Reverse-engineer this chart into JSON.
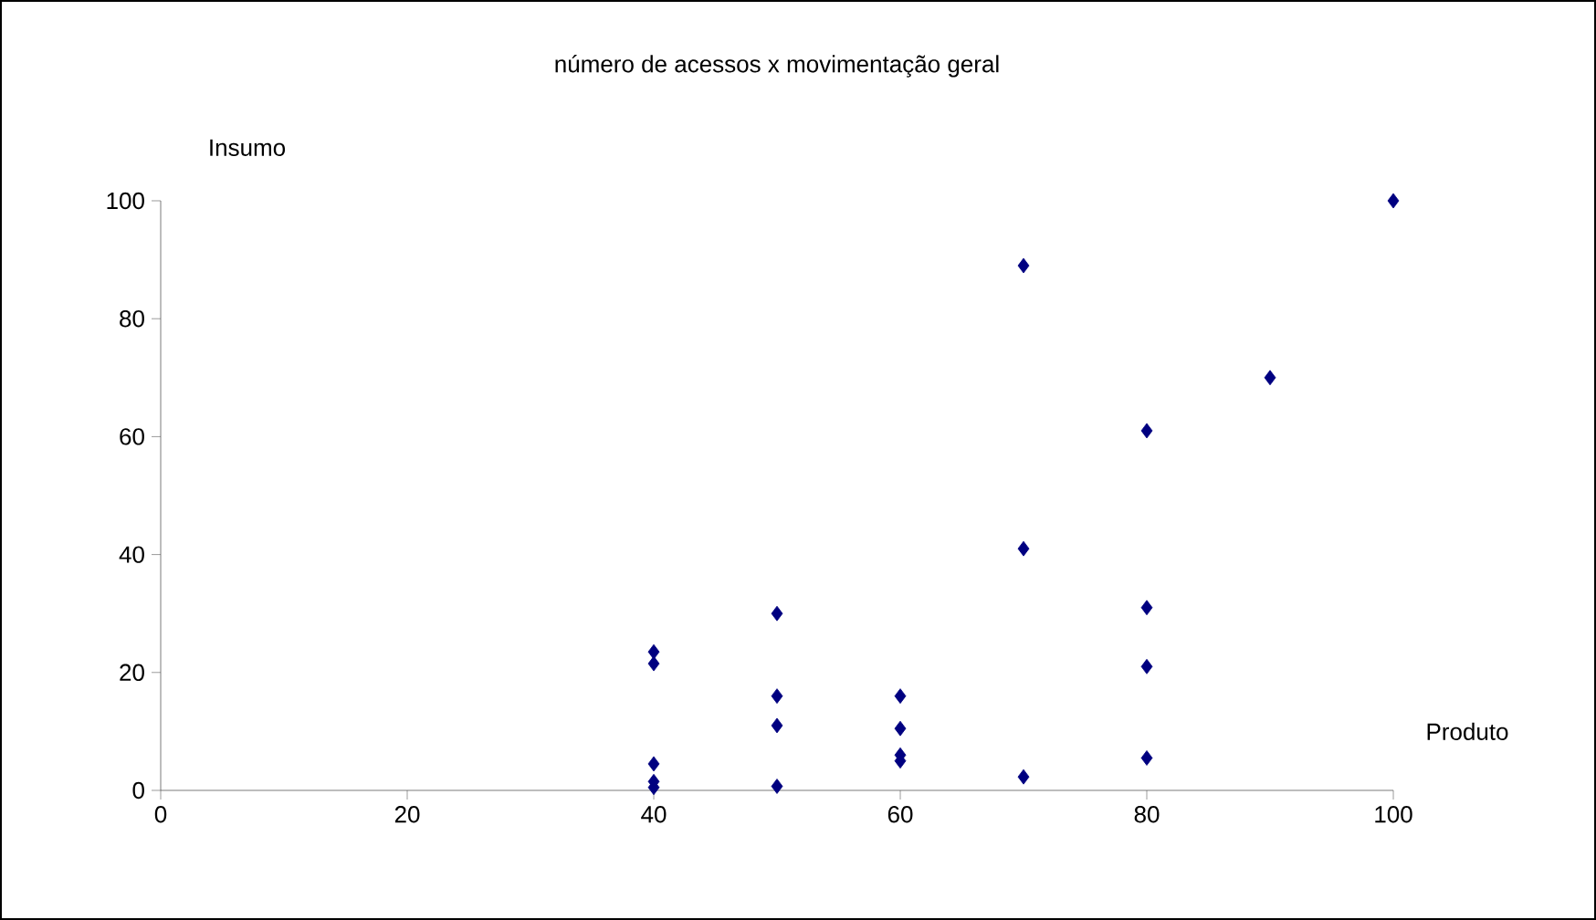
{
  "chart_data": {
    "type": "scatter",
    "title": "número de acessos x movimentação geral",
    "xlabel": "Produto",
    "ylabel": "Insumo",
    "x": [
      40,
      40,
      40,
      40,
      40,
      50,
      50,
      50,
      50,
      60,
      60,
      60,
      60,
      70,
      70,
      70,
      80,
      80,
      80,
      80,
      90,
      100
    ],
    "values": [
      23.5,
      21.5,
      4.5,
      1.5,
      0.5,
      30,
      16,
      11,
      0.7,
      16,
      10.5,
      6,
      5,
      89,
      41,
      2.3,
      61,
      31,
      21,
      5.5,
      70,
      100
    ],
    "color": "#000080",
    "marker": "diamond",
    "xlim": [
      0,
      100
    ],
    "ylim": [
      0,
      100
    ],
    "xticks": [
      0,
      20,
      40,
      60,
      80,
      100
    ],
    "yticks": [
      0,
      20,
      40,
      60,
      80,
      100
    ]
  }
}
